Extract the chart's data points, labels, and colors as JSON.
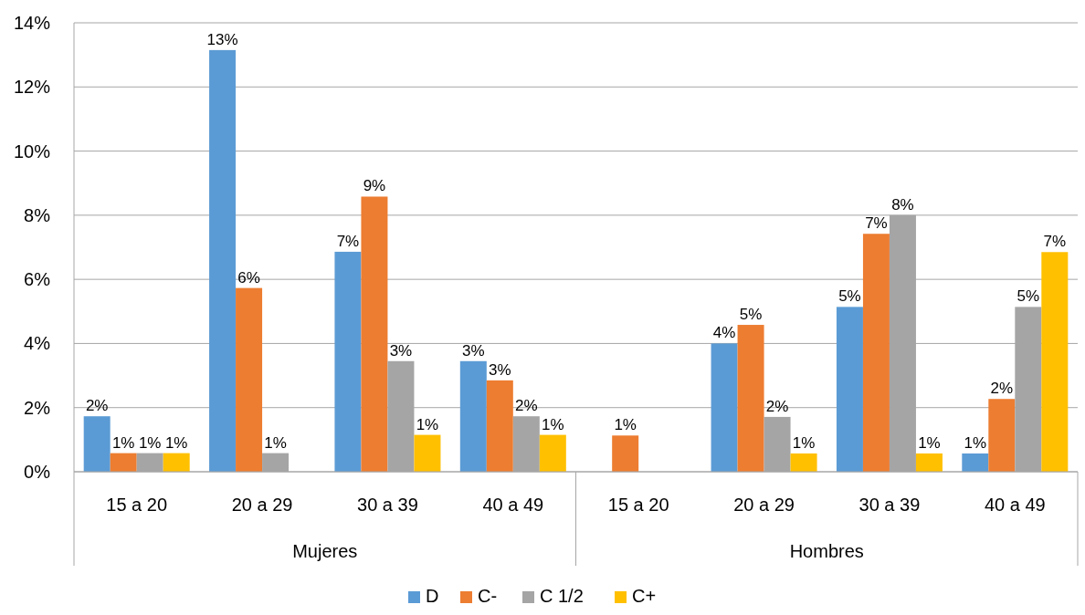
{
  "chart_data": {
    "type": "bar",
    "categories": [
      "15 a 20",
      "20 a 29",
      "30 a 39",
      "40 a 49",
      "15 a 20",
      "20 a 29",
      "30 a 39",
      "40 a 49"
    ],
    "series": [
      {
        "name": "D",
        "color": "#5b9bd5",
        "values": [
          1.73,
          13.15,
          6.86,
          3.45,
          null,
          4.0,
          5.14,
          0.57
        ],
        "value_labels": [
          "2%",
          "13%",
          "7%",
          "3%",
          null,
          "4%",
          "5%",
          "1%"
        ]
      },
      {
        "name": "C-",
        "color": "#ed7d31",
        "values": [
          0.58,
          5.73,
          8.58,
          2.85,
          1.13,
          4.58,
          7.42,
          2.27
        ],
        "value_labels": [
          "1%",
          "6%",
          "9%",
          "3%",
          "1%",
          "5%",
          "7%",
          "2%"
        ]
      },
      {
        "name": "C 1/2",
        "color": "#a5a5a5",
        "values": [
          0.58,
          0.58,
          3.45,
          1.73,
          null,
          1.71,
          8.0,
          5.14
        ],
        "value_labels": [
          "1%",
          "1%",
          "3%",
          "2%",
          null,
          "2%",
          "8%",
          "5%"
        ]
      },
      {
        "name": "C+",
        "color": "#ffc000",
        "values": [
          0.58,
          null,
          1.15,
          1.15,
          null,
          0.57,
          0.57,
          6.85
        ],
        "value_labels": [
          "1%",
          null,
          "1%",
          "1%",
          null,
          "1%",
          "1%",
          "7%"
        ]
      }
    ],
    "ylim": [
      0,
      14
    ],
    "yticks": [
      {
        "value": 0,
        "label": "0%"
      },
      {
        "value": 2,
        "label": "2%"
      },
      {
        "value": 4,
        "label": "4%"
      },
      {
        "value": 6,
        "label": "6%"
      },
      {
        "value": 8,
        "label": "8%"
      },
      {
        "value": 10,
        "label": "10%"
      },
      {
        "value": 12,
        "label": "12%"
      },
      {
        "value": 14,
        "label": "14%"
      }
    ],
    "annotations": [
      "Mujeres",
      "Hombres"
    ],
    "grid": "y",
    "legend": "bottom"
  }
}
